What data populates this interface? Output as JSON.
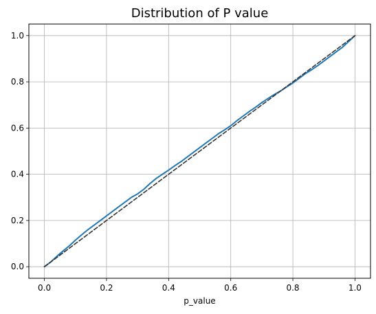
{
  "chart_data": {
    "type": "line",
    "title": "Distribution of P value",
    "xlabel": "p_value",
    "ylabel": "",
    "xlim": [
      -0.05,
      1.05
    ],
    "ylim": [
      -0.05,
      1.05
    ],
    "grid": true,
    "x_ticks": [
      0.0,
      0.2,
      0.4,
      0.6,
      0.8,
      1.0
    ],
    "x_tick_labels": [
      "0.0",
      "0.2",
      "0.4",
      "0.6",
      "0.8",
      "1.0"
    ],
    "y_ticks": [
      0.0,
      0.2,
      0.4,
      0.6,
      0.8,
      1.0
    ],
    "y_tick_labels": [
      "0.0",
      "0.2",
      "0.4",
      "0.6",
      "0.8",
      "1.0"
    ],
    "series": [
      {
        "style": "solid",
        "color": "#1f77b4",
        "x": [
          0.0,
          0.02,
          0.04,
          0.06,
          0.08,
          0.1,
          0.12,
          0.14,
          0.16,
          0.18,
          0.2,
          0.22,
          0.24,
          0.26,
          0.28,
          0.3,
          0.32,
          0.34,
          0.36,
          0.38,
          0.4,
          0.42,
          0.44,
          0.46,
          0.48,
          0.5,
          0.52,
          0.54,
          0.56,
          0.58,
          0.6,
          0.62,
          0.64,
          0.66,
          0.68,
          0.7,
          0.72,
          0.74,
          0.76,
          0.78,
          0.8,
          0.82,
          0.84,
          0.86,
          0.88,
          0.9,
          0.92,
          0.94,
          0.96,
          0.98,
          1.0
        ],
        "y": [
          0.0,
          0.02,
          0.045,
          0.068,
          0.09,
          0.115,
          0.138,
          0.16,
          0.18,
          0.2,
          0.22,
          0.24,
          0.26,
          0.28,
          0.3,
          0.315,
          0.335,
          0.36,
          0.382,
          0.4,
          0.418,
          0.437,
          0.455,
          0.475,
          0.495,
          0.515,
          0.535,
          0.555,
          0.575,
          0.592,
          0.61,
          0.632,
          0.652,
          0.672,
          0.69,
          0.71,
          0.728,
          0.745,
          0.76,
          0.778,
          0.795,
          0.815,
          0.835,
          0.852,
          0.87,
          0.89,
          0.91,
          0.93,
          0.95,
          0.975,
          1.0
        ]
      },
      {
        "style": "dashed",
        "color": "#333333",
        "x": [
          0.0,
          1.0
        ],
        "y": [
          0.0,
          1.0
        ]
      }
    ]
  }
}
